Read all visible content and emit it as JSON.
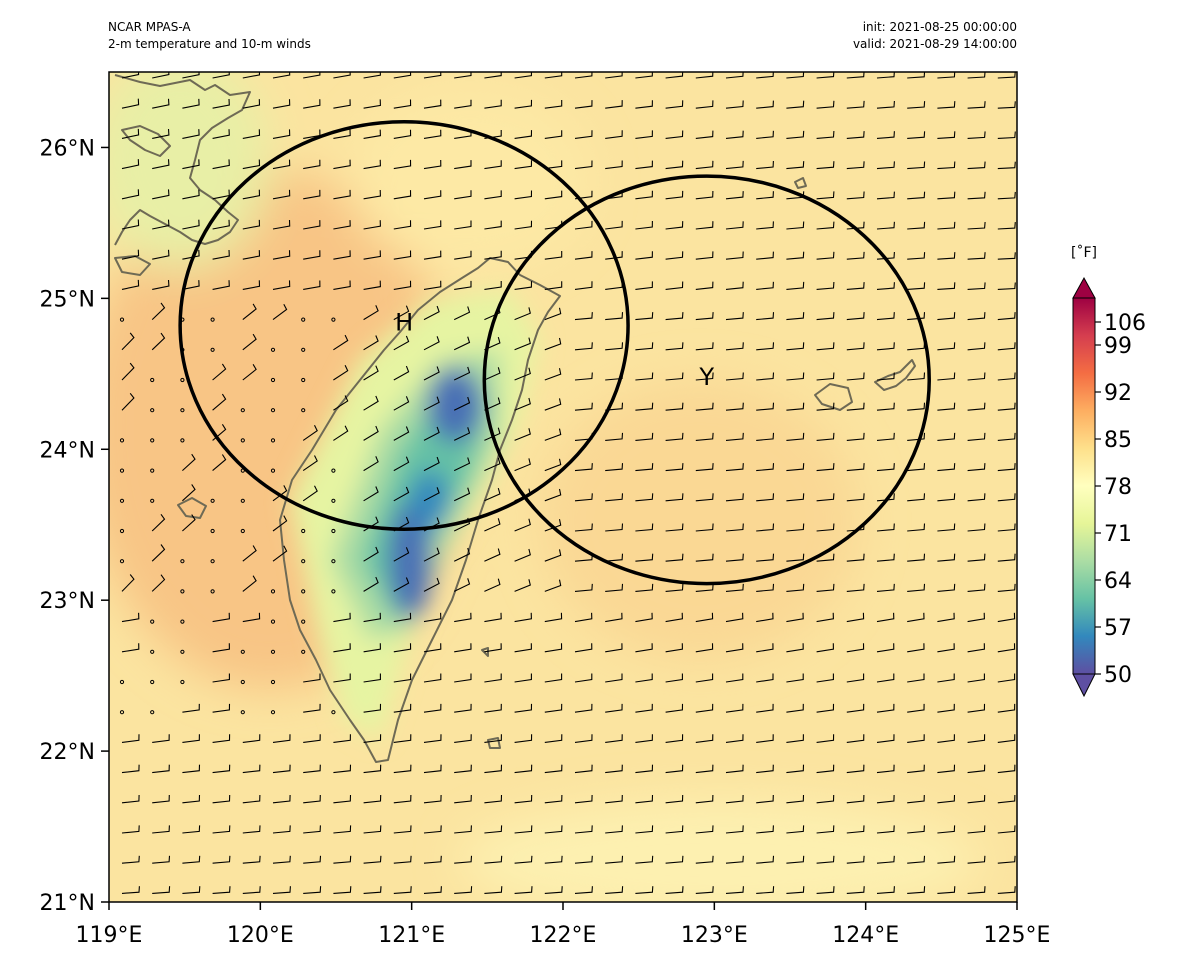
{
  "header": {
    "left_line1": "NCAR MPAS-A",
    "left_line2": "2-m temperature and 10-m winds",
    "right_line1": "init: 2021-08-25 00:00:00",
    "right_line2": "valid: 2021-08-29 14:00:00"
  },
  "map": {
    "lon_range": [
      119,
      125
    ],
    "lat_range": [
      21,
      26.5
    ],
    "lon_ticks": [
      {
        "value": 119,
        "label": "119°E"
      },
      {
        "value": 120,
        "label": "120°E"
      },
      {
        "value": 121,
        "label": "121°E"
      },
      {
        "value": 122,
        "label": "122°E"
      },
      {
        "value": 123,
        "label": "123°E"
      },
      {
        "value": 124,
        "label": "124°E"
      },
      {
        "value": 125,
        "label": "125°E"
      }
    ],
    "lat_ticks": [
      {
        "value": 21,
        "label": "21°N"
      },
      {
        "value": 22,
        "label": "22°N"
      },
      {
        "value": 23,
        "label": "23°N"
      },
      {
        "value": 24,
        "label": "24°N"
      },
      {
        "value": 25,
        "label": "25°N"
      },
      {
        "value": 26,
        "label": "26°N"
      }
    ],
    "circles": [
      {
        "label": "H",
        "center_lon": 120.95,
        "center_lat": 24.82,
        "radius_lon": 1.48,
        "radius_lat": 1.35
      },
      {
        "label": "Y",
        "center_lon": 122.95,
        "center_lat": 24.46,
        "radius_lon": 1.47,
        "radius_lat": 1.35
      }
    ],
    "coastline_color": "#6e6a55",
    "background_color": "#fbe7a0"
  },
  "colorbar": {
    "unit": "[˚F]",
    "min": 50,
    "max": 106,
    "ticks": [
      {
        "value": 106,
        "label": "106"
      },
      {
        "value": 99,
        "label": "99"
      },
      {
        "value": 92,
        "label": "92"
      },
      {
        "value": 85,
        "label": "85"
      },
      {
        "value": 78,
        "label": "78"
      },
      {
        "value": 71,
        "label": "71"
      },
      {
        "value": 64,
        "label": "64"
      },
      {
        "value": 57,
        "label": "57"
      },
      {
        "value": 50,
        "label": "50"
      }
    ],
    "colors": [
      "#5e4fa2",
      "#3b8cbf",
      "#54aead",
      "#8ccf9f",
      "#c6e89b",
      "#f3f9ae",
      "#fee697",
      "#fdbe6f",
      "#f88d52",
      "#e35a4a",
      "#b81e48",
      "#9e0142"
    ]
  }
}
